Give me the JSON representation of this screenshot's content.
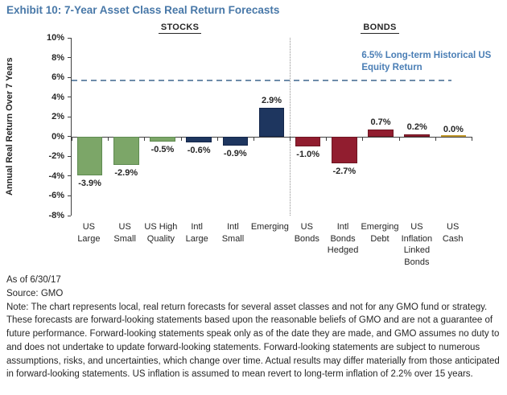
{
  "title": "Exhibit 10: 7-Year Asset Class Real Return Forecasts",
  "colors": {
    "title": "#4878A8",
    "annotation": "#4A7EB5",
    "dashed_line": "#6E8CAA",
    "axis": "#404040",
    "text": "#262626",
    "stocks_us": "#7CA668",
    "stocks_intl_emerging": "#1E365F",
    "bonds": "#911D2F",
    "cash": "#C1982B"
  },
  "chart_data": {
    "type": "bar",
    "title": "Exhibit 10: 7-Year Asset Class Real Return Forecasts",
    "xlabel": "",
    "ylabel": "Annual Real Return Over 7 Years",
    "ylim": [
      -8,
      10
    ],
    "ytick_step": 2,
    "grid": false,
    "group_headers": [
      {
        "label": "STOCKS",
        "from": 0,
        "to": 5
      },
      {
        "label": "BONDS",
        "from": 6,
        "to": 10
      }
    ],
    "categories": [
      "US Large",
      "US Small",
      "US High Quality",
      "Intl Large",
      "Intl Small",
      "Emerging",
      "US Bonds",
      "Intl Bonds Hedged",
      "Emerging Debt",
      "US Inflation Linked Bonds",
      "US Cash"
    ],
    "category_lines": [
      [
        "US",
        "Large"
      ],
      [
        "US",
        "Small"
      ],
      [
        "US High",
        "Quality"
      ],
      [
        "Intl",
        "Large"
      ],
      [
        "Intl",
        "Small"
      ],
      [
        "Emerging"
      ],
      [
        "US",
        "Bonds"
      ],
      [
        "Intl",
        "Bonds",
        "Hedged"
      ],
      [
        "Emerging",
        "Debt"
      ],
      [
        "US",
        "Inflation",
        "Linked",
        "Bonds"
      ],
      [
        "US",
        "Cash"
      ]
    ],
    "values": [
      -3.9,
      -2.9,
      -0.5,
      -0.6,
      -0.9,
      2.9,
      -1.0,
      -2.7,
      0.7,
      0.2,
      0.0
    ],
    "value_labels": [
      "-3.9%",
      "-2.9%",
      "-0.5%",
      "-0.6%",
      "-0.9%",
      "2.9%",
      "-1.0%",
      "-2.7%",
      "0.7%",
      "0.2%",
      "0.0%"
    ],
    "bar_colors": [
      "#7CA668",
      "#7CA668",
      "#7CA668",
      "#1E365F",
      "#1E365F",
      "#1E365F",
      "#911D2F",
      "#911D2F",
      "#911D2F",
      "#911D2F",
      "#C1982B"
    ],
    "bar_border_colors": [
      "#5E8A50",
      "#5E8A50",
      "#5E8A50",
      "#14264A",
      "#14264A",
      "#14264A",
      "#6E1622",
      "#6E1622",
      "#6E1622",
      "#6E1622",
      "#A07E1F"
    ],
    "reference_line": {
      "value": 6.5,
      "draw_at": 5.8,
      "label_line1": "6.5% Long-term Historical US",
      "label_line2": "Equity Return"
    },
    "legend": null
  },
  "footer": {
    "as_of": "As of 6/30/17",
    "source": "Source: GMO",
    "note": "Note: The chart represents local, real return forecasts for several asset classes and not for any GMO fund or strategy. These forecasts are forward-looking statements based upon the reasonable beliefs of GMO and are not a guarantee of future performance. Forward-looking statements speak only as of the date they are made, and GMO assumes no duty to and does not undertake to update forward-looking statements. Forward-looking statements are subject to numerous assumptions, risks, and uncertainties, which change over time. Actual results may differ materially from those anticipated in forward-looking statements. US inflation is assumed to mean revert to long-term inflation of 2.2% over 15 years."
  }
}
